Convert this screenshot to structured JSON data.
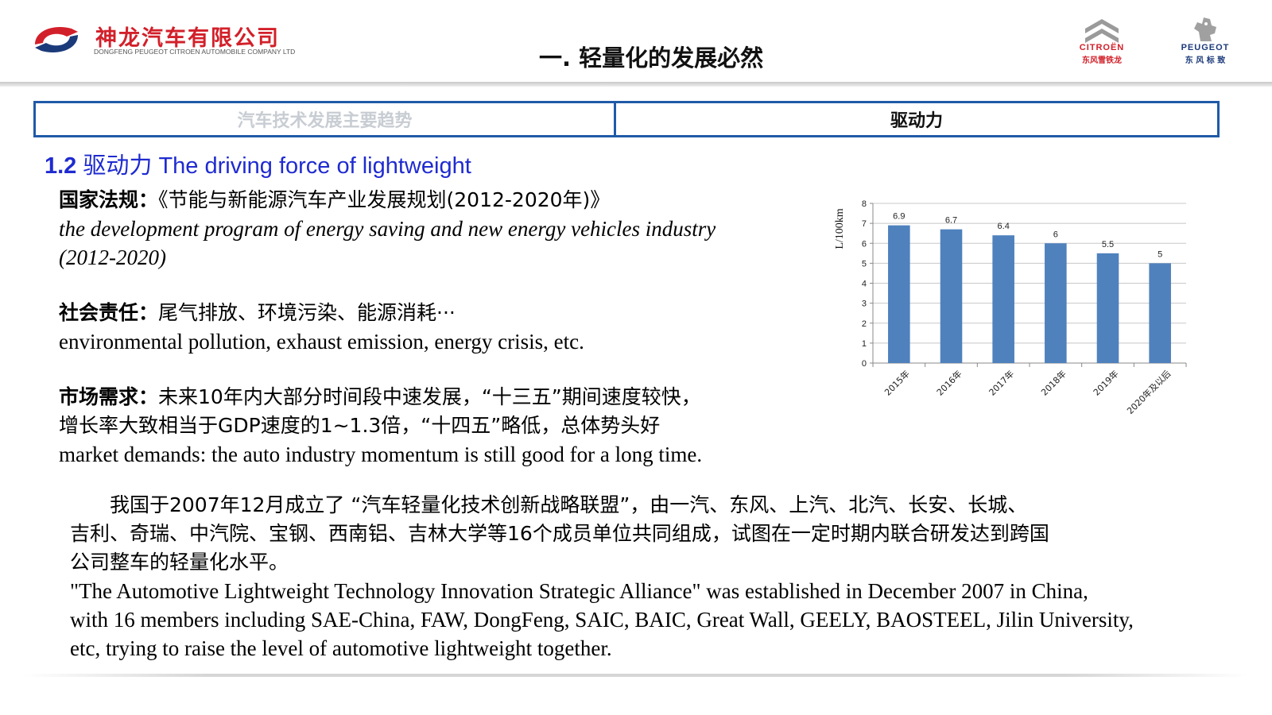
{
  "header": {
    "company_cn": "神龙汽车有限公司",
    "company_en": "DONGFENG PEUGEOT CITROEN AUTOMOBILE COMPANY LTD",
    "page_title": "一. 轻量化的发展必然",
    "brands": [
      {
        "name": "CITROËN",
        "cn": "东风雪铁龙",
        "color": "#d2202a"
      },
      {
        "name": "PEUGEOT",
        "cn": "东 风 标 致",
        "color": "#1b3a7a"
      }
    ]
  },
  "tabs": [
    {
      "label": "汽车技术发展主要趋势",
      "active": false
    },
    {
      "label": "驱动力",
      "active": true
    }
  ],
  "section": {
    "number": "1.2",
    "title": "驱动力 The driving force of lightweight"
  },
  "blocks": {
    "regulation": {
      "label": "国家法规：",
      "text": "《节能与新能源汽车产业发展规划(2012-2020年)》",
      "en_line1": "the development program of energy saving and new energy vehicles industry",
      "en_line2": "(2012-2020)"
    },
    "social": {
      "label": "社会责任：",
      "text": "尾气排放、环境污染、能源消耗···",
      "en": "environmental pollution, exhaust emission, energy crisis, etc."
    },
    "market": {
      "label": "市场需求：",
      "text1": "未来10年内大部分时间段中速发展，“十三五”期间速度较快，",
      "text2": "增长率大致相当于GDP速度的1~1.3倍，“十四五”略低，总体势头好",
      "en": "market demands: the auto industry momentum is still good for a long time."
    }
  },
  "alliance": {
    "cn1": "　　我国于2007年12月成立了 “汽车轻量化技术创新战略联盟”，由一汽、东风、上汽、北汽、长安、长城、",
    "cn2": "吉利、奇瑞、中汽院、宝钢、西南铝、吉林大学等16个成员单位共同组成，试图在一定时期内联合研发达到跨国",
    "cn3": "公司整车的轻量化水平。",
    "en1": "  \"The Automotive Lightweight Technology Innovation Strategic Alliance\" was established in December 2007 in China,",
    "en2": "with 16 members including SAE-China, FAW, DongFeng, SAIC, BAIC, Great Wall, GEELY, BAOSTEEL, Jilin University,",
    "en3": "etc, trying to raise the level of automotive lightweight together."
  },
  "chart_data": {
    "type": "bar",
    "categories": [
      "2015年",
      "2016年",
      "2017年",
      "2018年",
      "2019年",
      "2020年及以后"
    ],
    "values": [
      6.9,
      6.7,
      6.4,
      6,
      5.5,
      5
    ],
    "data_labels": [
      "6.9",
      "6.7",
      "6.4",
      "6",
      "5.5",
      "5"
    ],
    "ylabel": "L/100km",
    "ylim": [
      0,
      8
    ],
    "yticks": [
      "0",
      "1",
      "2",
      "3",
      "4",
      "5",
      "6",
      "7",
      "8"
    ],
    "grid": true,
    "bar_color": "#4f81bd"
  }
}
